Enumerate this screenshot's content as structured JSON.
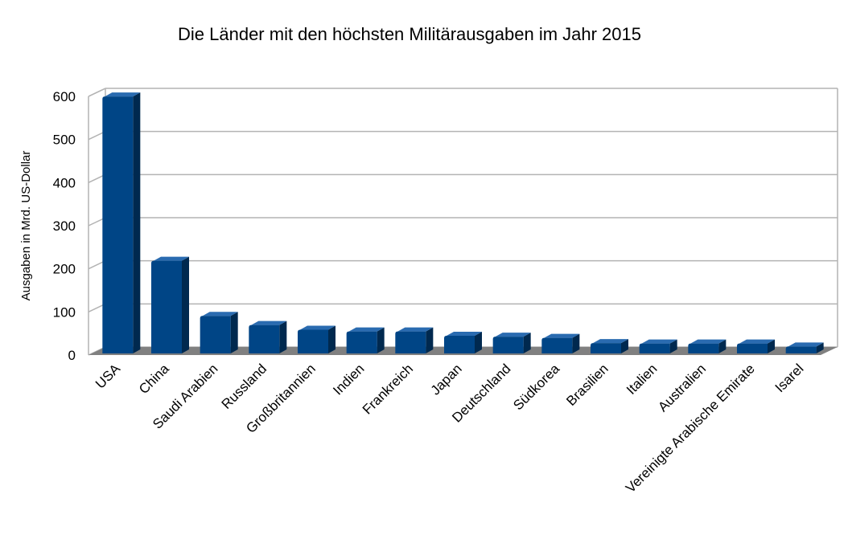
{
  "chart_data": {
    "type": "bar",
    "title": "Die Länder mit den höchsten Militärausgaben im Jahr 2015",
    "xlabel": "",
    "ylabel": "Ausgaben in Mrd. US-Dollar",
    "ylim": [
      0,
      600
    ],
    "yticks": [
      0,
      100,
      200,
      300,
      400,
      500,
      600
    ],
    "grid": true,
    "categories": [
      "USA",
      "China",
      "Saudi Arabien",
      "Russland",
      "Großbritannien",
      "Indien",
      "Frankreich",
      "Japan",
      "Deutschland",
      "Südkorea",
      "Brasilien",
      "Italien",
      "Australien",
      "Vereinigte Arabische Emirate",
      "Isarel"
    ],
    "values": [
      596,
      215,
      87,
      66,
      55,
      51,
      51,
      41,
      39,
      36,
      24,
      23,
      23,
      23,
      16
    ],
    "colors": {
      "bar_front": "#004586",
      "bar_side": "#00294f",
      "bar_top": "#2a6bb0",
      "floor": "#808080",
      "grid": "#b3b3b3"
    }
  }
}
